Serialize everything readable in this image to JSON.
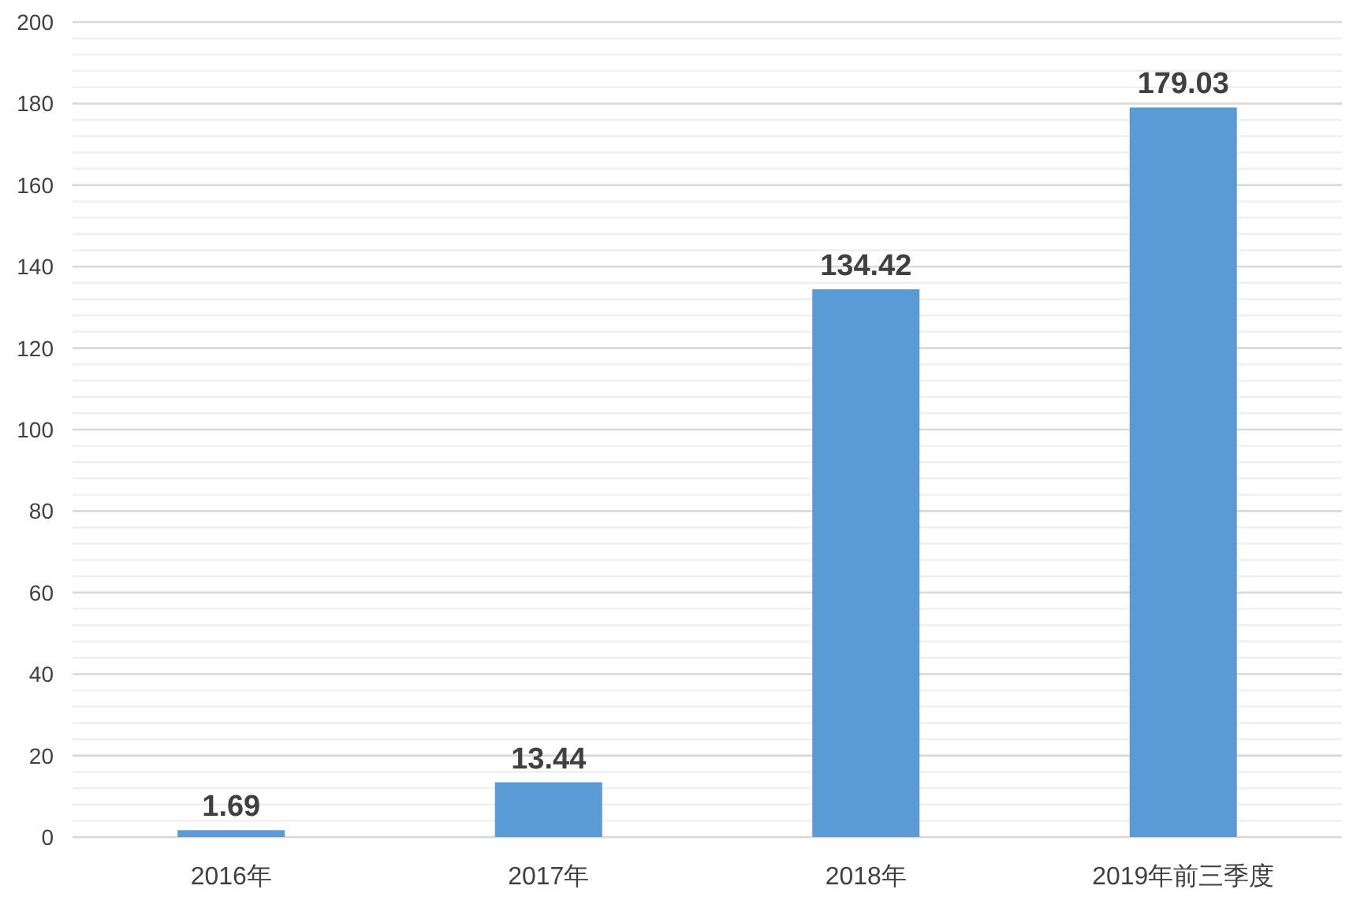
{
  "chart_data": {
    "type": "bar",
    "categories": [
      "2016年",
      "2017年",
      "2018年",
      "2019年前三季度"
    ],
    "values": [
      1.69,
      13.44,
      134.42,
      179.03
    ],
    "color": "#5b9bd5",
    "data_labels": true,
    "ylim": [
      0,
      200
    ],
    "yticks": [
      0,
      {
        "value": 4,
        "label": null
      },
      {
        "value": 8,
        "label": null
      },
      {
        "value": 12,
        "label": null
      },
      {
        "value": 16,
        "label": null
      },
      20,
      {
        "value": 24,
        "label": null
      },
      {
        "value": 28,
        "label": null
      },
      {
        "value": 32,
        "label": null
      },
      {
        "value": 36,
        "label": null
      },
      40,
      {
        "value": 44,
        "label": null
      },
      {
        "value": 48,
        "label": null
      },
      {
        "value": 52,
        "label": null
      },
      {
        "value": 56,
        "label": null
      },
      60,
      {
        "value": 64,
        "label": null
      },
      {
        "value": 68,
        "label": null
      },
      {
        "value": 72,
        "label": null
      },
      {
        "value": 76,
        "label": null
      },
      80,
      {
        "value": 84,
        "label": null
      },
      {
        "value": 88,
        "label": null
      },
      {
        "value": 92,
        "label": null
      },
      {
        "value": 96,
        "label": null
      },
      100,
      {
        "value": 104,
        "label": null
      },
      {
        "value": 108,
        "label": null
      },
      {
        "value": 112,
        "label": null
      },
      {
        "value": 116,
        "label": null
      },
      120,
      {
        "value": 124,
        "label": null
      },
      {
        "value": 128,
        "label": null
      },
      {
        "value": 132,
        "label": null
      },
      {
        "value": 136,
        "label": null
      },
      140,
      {
        "value": 144,
        "label": null
      },
      {
        "value": 148,
        "label": null
      },
      {
        "value": 152,
        "label": null
      },
      {
        "value": 156,
        "label": null
      },
      160,
      {
        "value": 164,
        "label": null
      },
      {
        "value": 168,
        "label": null
      },
      {
        "value": 172,
        "label": null
      },
      {
        "value": 176,
        "label": null
      },
      180,
      {
        "value": 184,
        "label": null
      },
      {
        "value": 188,
        "label": null
      },
      {
        "value": 192,
        "label": null
      },
      {
        "value": 196,
        "label": null
      },
      200
    ],
    "grid": "y"
  }
}
